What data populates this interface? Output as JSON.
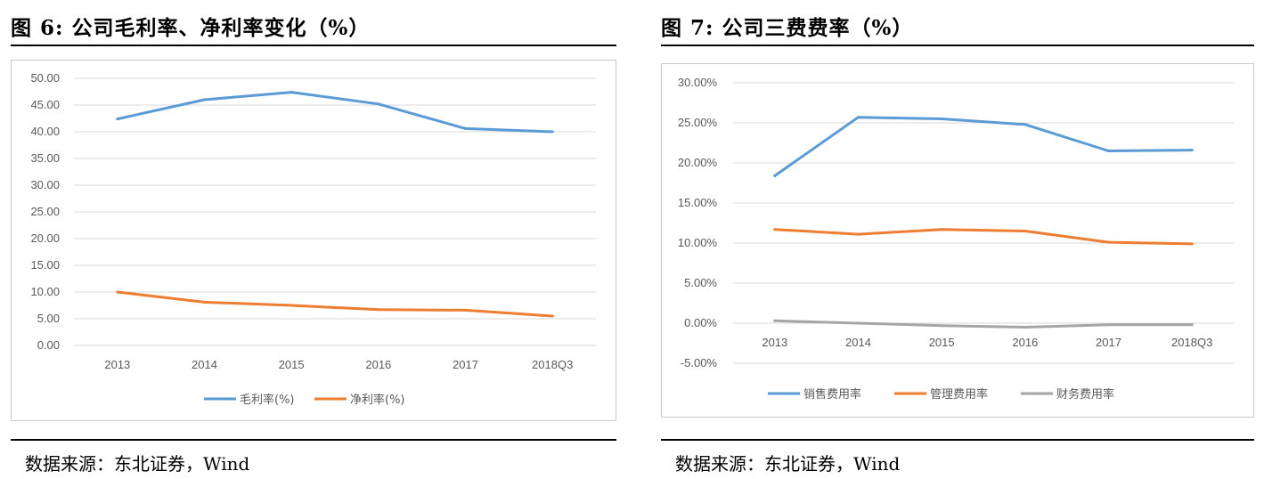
{
  "figures": [
    {
      "title": "图 6: 公司毛利率、净利率变化（%）",
      "source": "数据来源：东北证券，Wind",
      "chart_data": {
        "type": "line",
        "categories": [
          "2013",
          "2014",
          "2015",
          "2016",
          "2017",
          "2018Q3"
        ],
        "series": [
          {
            "name": "毛利率(%)",
            "color": "#5b9bd5",
            "values": [
              42.4,
              46.0,
              47.4,
              45.2,
              40.6,
              40.0
            ]
          },
          {
            "name": "净利率(%)",
            "color": "#ed7d31",
            "values": [
              10.0,
              8.1,
              7.5,
              6.7,
              6.6,
              5.5
            ]
          }
        ],
        "yticks": [
          "0.00",
          "5.00",
          "10.00",
          "15.00",
          "20.00",
          "25.00",
          "30.00",
          "35.00",
          "40.00",
          "45.00",
          "50.00"
        ],
        "ylim": [
          0,
          50
        ],
        "grid": true,
        "legend_position": "bottom"
      }
    },
    {
      "title": "图 7: 公司三费费率（%）",
      "source": "数据来源：东北证券，Wind",
      "chart_data": {
        "type": "line",
        "categories": [
          "2013",
          "2014",
          "2015",
          "2016",
          "2017",
          "2018Q3"
        ],
        "series": [
          {
            "name": "销售费用率",
            "color": "#5b9bd5",
            "values": [
              18.4,
              25.7,
              25.5,
              24.8,
              21.5,
              21.6
            ]
          },
          {
            "name": "管理费用率",
            "color": "#ed7d31",
            "values": [
              11.7,
              11.1,
              11.7,
              11.5,
              10.1,
              9.9
            ]
          },
          {
            "name": "财务费用率",
            "color": "#a5a5a5",
            "values": [
              0.3,
              0.0,
              -0.3,
              -0.5,
              -0.2,
              -0.2
            ]
          }
        ],
        "yticks": [
          "-5.00%",
          "0.00%",
          "5.00%",
          "10.00%",
          "15.00%",
          "20.00%",
          "25.00%",
          "30.00%"
        ],
        "ylim": [
          -5,
          30
        ],
        "grid": true,
        "legend_position": "bottom"
      }
    }
  ]
}
